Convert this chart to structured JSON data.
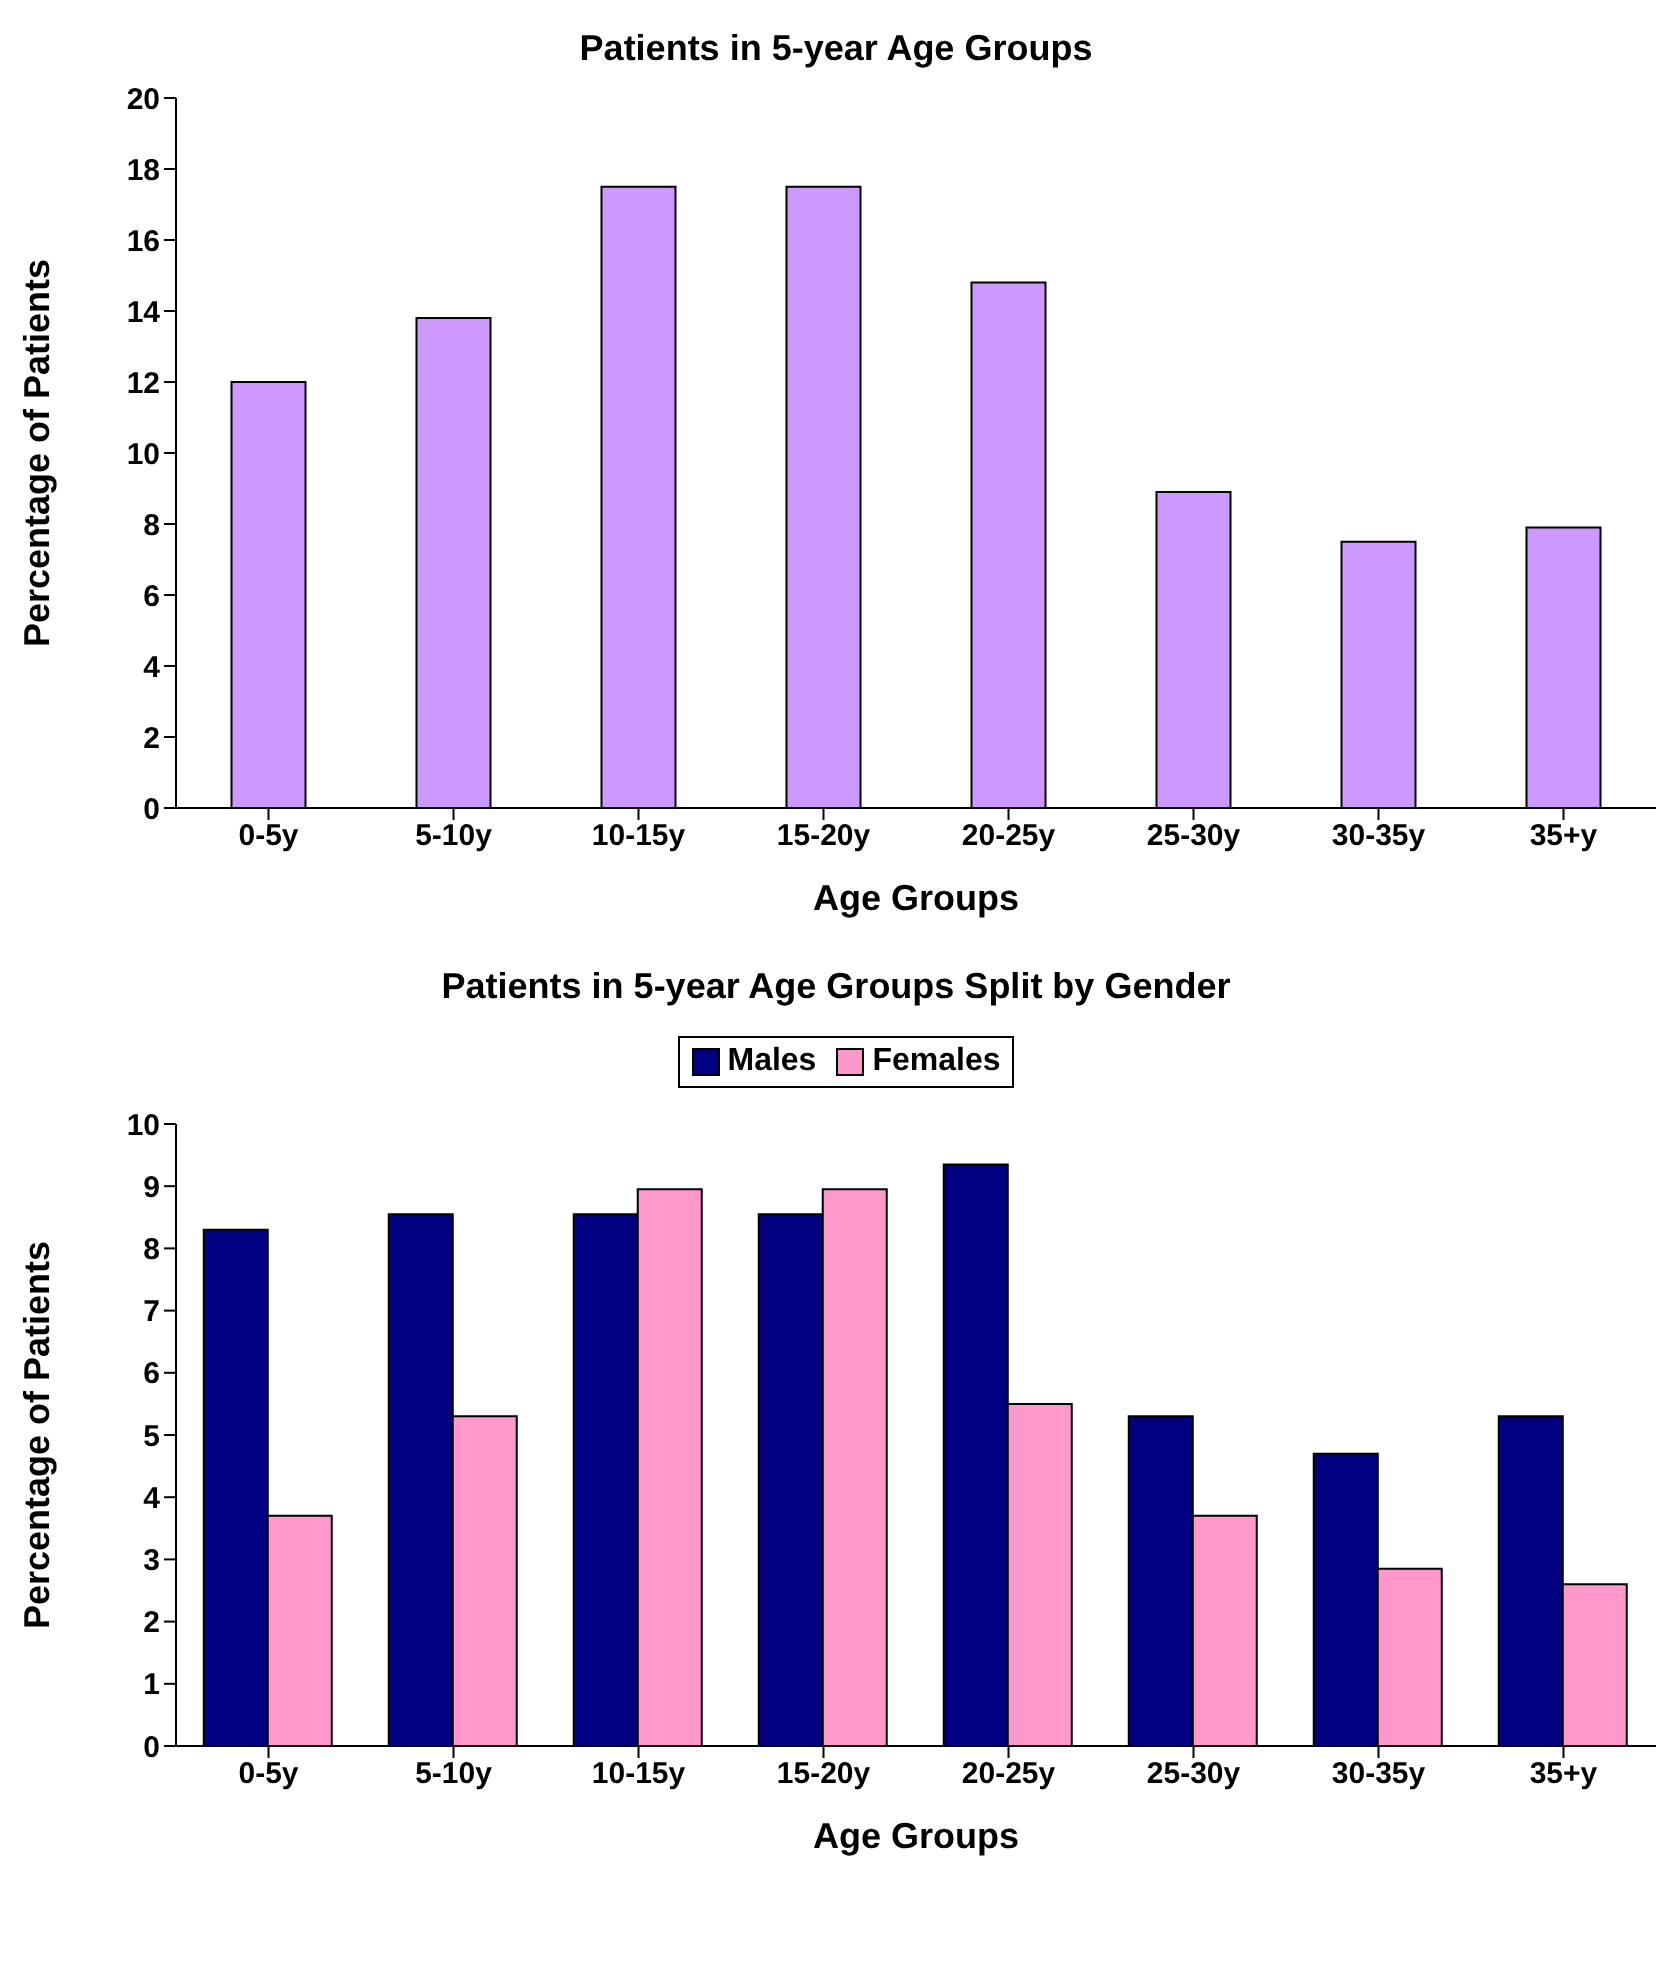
{
  "chart_data": [
    {
      "type": "bar",
      "title": "Patients in 5-year Age Groups",
      "xlabel": "Age Groups",
      "ylabel": "Percentage of Patients",
      "categories": [
        "0-5y",
        "5-10y",
        "10-15y",
        "15-20y",
        "20-25y",
        "25-30y",
        "30-35y",
        "35+y"
      ],
      "series": [
        {
          "color": "#cc99ff",
          "values": [
            12.0,
            13.8,
            17.5,
            17.5,
            14.8,
            8.9,
            7.5,
            7.9
          ]
        }
      ],
      "ylim": [
        0,
        20
      ],
      "yticks": [
        0,
        2,
        4,
        6,
        8,
        10,
        12,
        14,
        16,
        18,
        20
      ],
      "grid": false,
      "legend": false
    },
    {
      "type": "bar",
      "title": "Patients in 5-year Age Groups Split by Gender",
      "xlabel": "Age Groups",
      "ylabel": "Percentage of Patients",
      "categories": [
        "0-5y",
        "5-10y",
        "10-15y",
        "15-20y",
        "20-25y",
        "25-30y",
        "30-35y",
        "35+y"
      ],
      "series": [
        {
          "name": "Males",
          "color": "#000080",
          "values": [
            8.3,
            8.55,
            8.55,
            8.55,
            9.35,
            5.3,
            4.7,
            5.3
          ]
        },
        {
          "name": "Females",
          "color": "#ff99cc",
          "values": [
            3.7,
            5.3,
            8.95,
            8.95,
            5.5,
            3.7,
            2.85,
            2.6
          ]
        }
      ],
      "ylim": [
        0,
        10
      ],
      "yticks": [
        0,
        1,
        2,
        3,
        4,
        5,
        6,
        7,
        8,
        9,
        10
      ],
      "grid": false,
      "legend": "top"
    }
  ]
}
